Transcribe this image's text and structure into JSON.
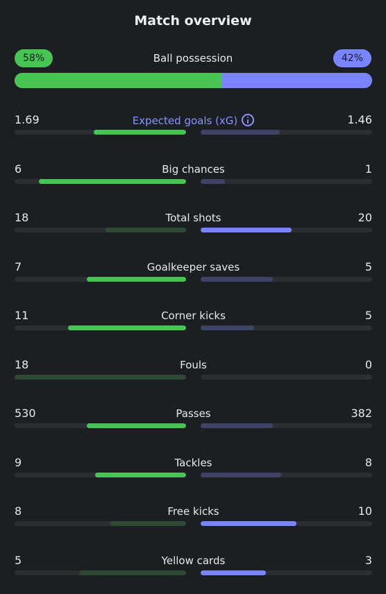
{
  "title": "Match overview",
  "possession": {
    "label": "Ball possession",
    "home": "58%",
    "away": "42%",
    "home_fraction": 0.58
  },
  "colors": {
    "home": "#46c553",
    "away": "#7b84ff",
    "home_dim": "#2f4a34",
    "away_dim": "#3f4466",
    "track": "#2b2f33",
    "accent": "#8c93ff"
  },
  "stats": [
    {
      "label": "Expected goals (xG)",
      "home": "1.69",
      "away": "1.46",
      "home_fill": 0.54,
      "away_fill": 0.46,
      "winner": "home",
      "accent": true,
      "info_icon": "info-icon"
    },
    {
      "label": "Big chances",
      "home": "6",
      "away": "1",
      "home_fill": 0.86,
      "away_fill": 0.14,
      "winner": "home"
    },
    {
      "label": "Total shots",
      "home": "18",
      "away": "20",
      "home_fill": 0.47,
      "away_fill": 0.53,
      "winner": "away"
    },
    {
      "label": "Goalkeeper saves",
      "home": "7",
      "away": "5",
      "home_fill": 0.58,
      "away_fill": 0.42,
      "winner": "home"
    },
    {
      "label": "Corner kicks",
      "home": "11",
      "away": "5",
      "home_fill": 0.69,
      "away_fill": 0.31,
      "winner": "home"
    },
    {
      "label": "Fouls",
      "home": "18",
      "away": "0",
      "home_fill": 1.0,
      "away_fill": 0.0,
      "winner": "away"
    },
    {
      "label": "Passes",
      "home": "530",
      "away": "382",
      "home_fill": 0.58,
      "away_fill": 0.42,
      "winner": "home"
    },
    {
      "label": "Tackles",
      "home": "9",
      "away": "8",
      "home_fill": 0.53,
      "away_fill": 0.47,
      "winner": "home"
    },
    {
      "label": "Free kicks",
      "home": "8",
      "away": "10",
      "home_fill": 0.44,
      "away_fill": 0.56,
      "winner": "away"
    },
    {
      "label": "Yellow cards",
      "home": "5",
      "away": "3",
      "home_fill": 0.62,
      "away_fill": 0.38,
      "winner": "away"
    }
  ]
}
